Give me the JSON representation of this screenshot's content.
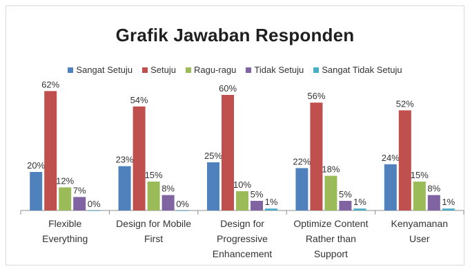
{
  "chart_data": {
    "type": "bar",
    "title": "Grafik Jawaban Responden",
    "categories": [
      [
        "Flexible",
        "Everything"
      ],
      [
        "Design for Mobile",
        "First"
      ],
      [
        "Design for",
        "Progressive",
        "Enhancement"
      ],
      [
        "Optimize Content",
        "Rather than",
        "Support"
      ],
      [
        "Kenyamanan",
        "User"
      ]
    ],
    "series": [
      {
        "name": "Sangat Setuju",
        "color": "#4f81bd",
        "values": [
          20,
          23,
          25,
          22,
          24
        ]
      },
      {
        "name": "Setuju",
        "color": "#c0504d",
        "values": [
          62,
          54,
          60,
          56,
          52
        ]
      },
      {
        "name": "Ragu-ragu",
        "color": "#9bbb59",
        "values": [
          12,
          15,
          10,
          18,
          15
        ]
      },
      {
        "name": "Tidak Setuju",
        "color": "#8064a2",
        "values": [
          7,
          8,
          5,
          5,
          8
        ]
      },
      {
        "name": "Sangat Tidak Setuju",
        "color": "#4bacc6",
        "values": [
          0,
          0,
          1,
          1,
          1
        ]
      }
    ],
    "value_suffix": "%",
    "ylim": [
      0,
      70
    ],
    "grid": false,
    "legend_position": "top"
  }
}
